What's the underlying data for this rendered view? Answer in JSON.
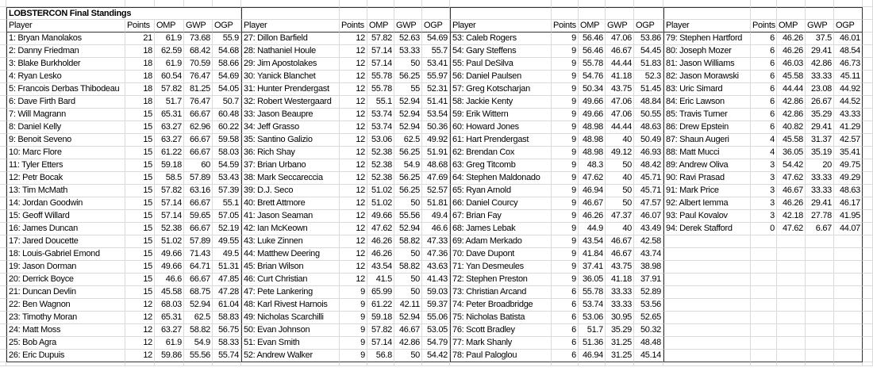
{
  "title": "LOBSTERCON Final Standings",
  "headers": [
    "Player",
    "Points",
    "OMP",
    "GWP",
    "OGP"
  ],
  "groups": [
    {
      "rows": [
        [
          "1: Bryan Manolakos",
          "21",
          "61.9",
          "73.68",
          "55.9"
        ],
        [
          "2: Danny Friedman",
          "18",
          "62.59",
          "68.42",
          "54.68"
        ],
        [
          "3: Blake Burkholder",
          "18",
          "61.9",
          "70.59",
          "58.66"
        ],
        [
          "4: Ryan Lesko",
          "18",
          "60.54",
          "76.47",
          "54.69"
        ],
        [
          "5: Francois Derbas Thibodeau",
          "18",
          "57.82",
          "81.25",
          "54.05"
        ],
        [
          "6: Dave Firth Bard",
          "18",
          "51.7",
          "76.47",
          "50.7"
        ],
        [
          "7: Will Magrann",
          "15",
          "65.31",
          "66.67",
          "60.48"
        ],
        [
          "8: Daniel Kelly",
          "15",
          "63.27",
          "62.96",
          "60.22"
        ],
        [
          "9: Benoit Seveno",
          "15",
          "63.27",
          "66.67",
          "59.58"
        ],
        [
          "10: Marc Flore",
          "15",
          "61.22",
          "66.67",
          "58.03"
        ],
        [
          "11: Tyler Etters",
          "15",
          "59.18",
          "60",
          "54.59"
        ],
        [
          "12: Petr Bocak",
          "15",
          "58.5",
          "57.89",
          "53.43"
        ],
        [
          "13: Tim McMath",
          "15",
          "57.82",
          "63.16",
          "57.39"
        ],
        [
          "14: Jordan Goodwin",
          "15",
          "57.14",
          "66.67",
          "55.1"
        ],
        [
          "15: Geoff Willard",
          "15",
          "57.14",
          "59.65",
          "57.05"
        ],
        [
          "16: James Duncan",
          "15",
          "52.38",
          "66.67",
          "52.19"
        ],
        [
          "17: Jared Doucette",
          "15",
          "51.02",
          "57.89",
          "49.55"
        ],
        [
          "18: Louis-Gabriel Emond",
          "15",
          "49.66",
          "71.43",
          "49.5"
        ],
        [
          "19: Jason Dorman",
          "15",
          "49.66",
          "64.71",
          "51.31"
        ],
        [
          "20: Derrick Boyce",
          "15",
          "46.6",
          "66.67",
          "47.85"
        ],
        [
          "21: Duncan Devlin",
          "15",
          "45.58",
          "68.75",
          "47.28"
        ],
        [
          "22: Ben Wagnon",
          "12",
          "68.03",
          "52.94",
          "61.04"
        ],
        [
          "23: Timothy Moran",
          "12",
          "65.31",
          "62.5",
          "58.83"
        ],
        [
          "24: Matt Moss",
          "12",
          "63.27",
          "58.82",
          "56.75"
        ],
        [
          "25: Bob Agra",
          "12",
          "61.9",
          "54.9",
          "58.33"
        ],
        [
          "26: Eric Dupuis",
          "12",
          "59.86",
          "55.56",
          "55.74"
        ]
      ]
    },
    {
      "rows": [
        [
          "27: Dillon Barfield",
          "12",
          "57.82",
          "52.63",
          "54.69"
        ],
        [
          "28: Nathaniel Houle",
          "12",
          "57.14",
          "53.33",
          "55.7"
        ],
        [
          "29: Jim Apostolakes",
          "12",
          "57.14",
          "50",
          "53.41"
        ],
        [
          "30: Yanick Blanchet",
          "12",
          "55.78",
          "56.25",
          "55.97"
        ],
        [
          "31: Hunter Prendergast",
          "12",
          "55.78",
          "55",
          "52.31"
        ],
        [
          "32: Robert Westergaard",
          "12",
          "55.1",
          "52.94",
          "51.41"
        ],
        [
          "33: Jason Beaupre",
          "12",
          "53.74",
          "52.94",
          "53.54"
        ],
        [
          "34: Jeff Grasso",
          "12",
          "53.74",
          "52.94",
          "50.36"
        ],
        [
          "35: Santino Galizio",
          "12",
          "53.06",
          "62.5",
          "49.92"
        ],
        [
          "36: Rich Shay",
          "12",
          "52.38",
          "56.25",
          "51.91"
        ],
        [
          "37: Brian Urbano",
          "12",
          "52.38",
          "54.9",
          "48.68"
        ],
        [
          "38: Mark Seccareccia",
          "12",
          "52.38",
          "56.25",
          "47.69"
        ],
        [
          "39: D.J. Seco",
          "12",
          "51.02",
          "56.25",
          "52.57"
        ],
        [
          "40: Brett Attmore",
          "12",
          "51.02",
          "50",
          "51.81"
        ],
        [
          "41: Jason Seaman",
          "12",
          "49.66",
          "55.56",
          "49.4"
        ],
        [
          "42: Ian McKeown",
          "12",
          "47.62",
          "52.94",
          "46.6"
        ],
        [
          "43: Luke Zinnen",
          "12",
          "46.26",
          "58.82",
          "47.33"
        ],
        [
          "44: Matthew Deering",
          "12",
          "46.26",
          "50",
          "47.36"
        ],
        [
          "45: Brian Wilson",
          "12",
          "43.54",
          "58.82",
          "43.63"
        ],
        [
          "46: Curt Christian",
          "12",
          "41.5",
          "50",
          "41.43"
        ],
        [
          "47: Pete Lankering",
          "9",
          "65.99",
          "50",
          "59.03"
        ],
        [
          "48: Karl Rivest Harnois",
          "9",
          "61.22",
          "42.11",
          "59.37"
        ],
        [
          "49: Nicholas Scarchilli",
          "9",
          "59.18",
          "52.94",
          "55.06"
        ],
        [
          "50: Evan Johnson",
          "9",
          "57.82",
          "46.67",
          "53.05"
        ],
        [
          "51: Evan Smith",
          "9",
          "57.14",
          "42.86",
          "54.79"
        ],
        [
          "52: Andrew Walker",
          "9",
          "56.8",
          "50",
          "54.42"
        ]
      ]
    },
    {
      "rows": [
        [
          "53: Caleb Rogers",
          "9",
          "56.46",
          "47.06",
          "53.86"
        ],
        [
          "54: Gary Steffens",
          "9",
          "56.46",
          "46.67",
          "54.45"
        ],
        [
          "55: Paul DeSilva",
          "9",
          "55.78",
          "44.44",
          "51.83"
        ],
        [
          "56: Daniel Paulsen",
          "9",
          "54.76",
          "41.18",
          "52.3"
        ],
        [
          "57: Greg Kotscharjan",
          "9",
          "50.34",
          "43.75",
          "51.45"
        ],
        [
          "58: Jackie Kenty",
          "9",
          "49.66",
          "47.06",
          "48.84"
        ],
        [
          "59: Erik Wittern",
          "9",
          "49.66",
          "47.06",
          "50.55"
        ],
        [
          "60: Howard Jones",
          "9",
          "48.98",
          "44.44",
          "48.63"
        ],
        [
          "61: Hart Prendergast",
          "9",
          "48.98",
          "40",
          "50.49"
        ],
        [
          "62: Brendan Cox",
          "9",
          "48.98",
          "49.12",
          "46.93"
        ],
        [
          "63: Greg Titcomb",
          "9",
          "48.3",
          "50",
          "48.42"
        ],
        [
          "64: Stephen Maldonado",
          "9",
          "47.62",
          "40",
          "45.71"
        ],
        [
          "65: Ryan Arnold",
          "9",
          "46.94",
          "50",
          "45.71"
        ],
        [
          "66: Daniel Courcy",
          "9",
          "46.67",
          "50",
          "47.57"
        ],
        [
          "67: Brian Fay",
          "9",
          "46.26",
          "47.37",
          "46.07"
        ],
        [
          "68: James Lebak",
          "9",
          "44.9",
          "40",
          "43.49"
        ],
        [
          "69: Adam Merkado",
          "9",
          "43.54",
          "46.67",
          "42.58"
        ],
        [
          "70: Dave Dupont",
          "9",
          "41.84",
          "46.67",
          "43.74"
        ],
        [
          "71: Yan Desmeules",
          "9",
          "37.41",
          "43.75",
          "38.98"
        ],
        [
          "72: Stephen Preston",
          "9",
          "36.05",
          "41.18",
          "37.91"
        ],
        [
          "73: Christian Arcand",
          "6",
          "55.78",
          "33.33",
          "52.89"
        ],
        [
          "74: Peter Broadbridge",
          "6",
          "53.74",
          "33.33",
          "53.56"
        ],
        [
          "75: Nicholas Batista",
          "6",
          "53.06",
          "30.95",
          "52.65"
        ],
        [
          "76: Scott Bradley",
          "6",
          "51.7",
          "35.29",
          "50.32"
        ],
        [
          "77: Mark Shanly",
          "6",
          "51.36",
          "31.25",
          "48.48"
        ],
        [
          "78: Paul Paloglou",
          "6",
          "46.94",
          "31.25",
          "45.14"
        ]
      ]
    },
    {
      "rows": [
        [
          "79: Stephen Hartford",
          "6",
          "46.26",
          "37.5",
          "46.01"
        ],
        [
          "80: Joseph Mozer",
          "6",
          "46.26",
          "29.41",
          "48.54"
        ],
        [
          "81: Jason Williams",
          "6",
          "46.03",
          "42.86",
          "46.73"
        ],
        [
          "82: Jason Morawski",
          "6",
          "45.58",
          "33.33",
          "45.11"
        ],
        [
          "83: Uric Simard",
          "6",
          "44.44",
          "23.08",
          "44.92"
        ],
        [
          "84: Eric Lawson",
          "6",
          "42.86",
          "26.67",
          "44.52"
        ],
        [
          "85: Travis Turner",
          "6",
          "42.86",
          "35.29",
          "43.33"
        ],
        [
          "86: Drew Epstein",
          "6",
          "40.82",
          "29.41",
          "41.29"
        ],
        [
          "87: Shaun Augeri",
          "4",
          "45.58",
          "31.37",
          "42.57"
        ],
        [
          "88: Matt Mucci",
          "4",
          "36.05",
          "35.19",
          "35.41"
        ],
        [
          "89: Andrew Oliva",
          "3",
          "54.42",
          "20",
          "49.75"
        ],
        [
          "90: Ravi Prasad",
          "3",
          "47.62",
          "33.33",
          "49.29"
        ],
        [
          "91: Mark Price",
          "3",
          "46.67",
          "33.33",
          "48.63"
        ],
        [
          "92: Albert Iemma",
          "3",
          "46.26",
          "29.41",
          "46.17"
        ],
        [
          "93: Paul Kovalov",
          "3",
          "42.18",
          "27.78",
          "41.95"
        ],
        [
          "94: Derek Stafford",
          "0",
          "47.62",
          "6.67",
          "44.07"
        ]
      ]
    }
  ]
}
